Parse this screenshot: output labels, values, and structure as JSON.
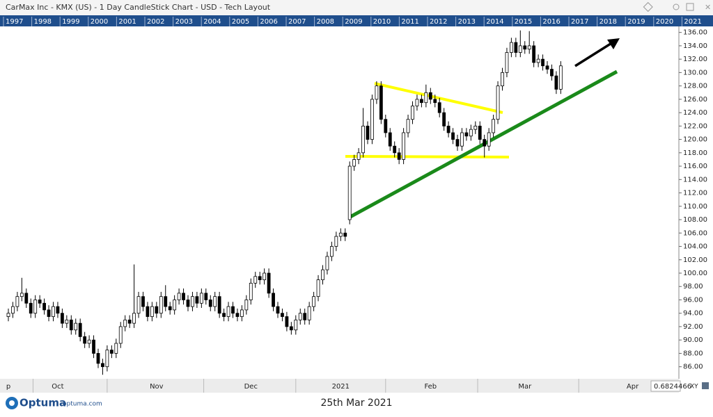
{
  "chart_data": {
    "type": "candlestick",
    "title": "CarMax Inc - KMX (US) - 1 Day CandleStick Chart - USD - Tech Layout",
    "categories": [
      "p",
      null,
      null,
      null,
      null,
      null,
      null,
      null,
      null,
      null,
      null,
      "Oct",
      null,
      null,
      null,
      null,
      null,
      null,
      null,
      null,
      null,
      null,
      null,
      null,
      null,
      null,
      null,
      null,
      null,
      null,
      null,
      null,
      null,
      "Nov",
      null,
      null,
      null,
      null,
      null,
      null,
      null,
      null,
      null,
      null,
      null,
      null,
      null,
      null,
      null,
      null,
      null,
      null,
      null,
      null,
      "Dec",
      null,
      null,
      null,
      null,
      null,
      null,
      null,
      null,
      null,
      null,
      null,
      null,
      null,
      null,
      null,
      null,
      null,
      null,
      null,
      "2021",
      null,
      null,
      null,
      null,
      null,
      null,
      null,
      null,
      null,
      null,
      null,
      null,
      null,
      null,
      null,
      null,
      null,
      null,
      null,
      "Feb",
      null,
      null,
      null,
      null,
      null,
      null,
      null,
      null,
      null,
      null,
      null,
      null,
      null,
      null,
      null,
      null,
      null,
      null,
      null,
      null,
      "Mar",
      null,
      null,
      null,
      null,
      null,
      null,
      null,
      null,
      null,
      null,
      null,
      null,
      null,
      null,
      null,
      null,
      null,
      null,
      null,
      null,
      null,
      null,
      null,
      "Apr",
      null,
      null,
      null,
      null,
      null,
      null,
      null,
      null,
      null,
      null
    ],
    "open": [
      93.5,
      94,
      95,
      96.5,
      97,
      95.5,
      94,
      96,
      95.5,
      94.5,
      93.5,
      95,
      94,
      92.5,
      93,
      91.5,
      92.5,
      90.5,
      89.5,
      90,
      88,
      86.5,
      86,
      88.5,
      88,
      89.5,
      92,
      93,
      92.5,
      94,
      96.5,
      95,
      93.5,
      95,
      94,
      96.5,
      95,
      94.5,
      96,
      97,
      96,
      95,
      96.5,
      95.5,
      97,
      96,
      95,
      96.5,
      94,
      93.5,
      95,
      94,
      93.5,
      94.5,
      96,
      98.5,
      99.5,
      99,
      100,
      97,
      95,
      94,
      93.5,
      92,
      91.5,
      93,
      94,
      93,
      95,
      96.5,
      99,
      100.5,
      102.5,
      104,
      105.5,
      106,
      108,
      116,
      117,
      118,
      122,
      120,
      126,
      128,
      123,
      121,
      119,
      118,
      117,
      121,
      123,
      125,
      126,
      125.5,
      127,
      126,
      125.5,
      124,
      122,
      121,
      120,
      119,
      121,
      120.5,
      121.5,
      122,
      120,
      119,
      121,
      123,
      128,
      130,
      133,
      134.5,
      133,
      134,
      133.5,
      134,
      131.5,
      132,
      131,
      130.5,
      129.5,
      127.5,
      null,
      null,
      null,
      null,
      null,
      null,
      null,
      null,
      null,
      null,
      null,
      null,
      null,
      null,
      null,
      null,
      null,
      null,
      null,
      null,
      null,
      null,
      null,
      null,
      null,
      null
    ],
    "high": [
      94.7,
      95.7,
      97.2,
      99.3,
      97.7,
      96.2,
      96.7,
      96.7,
      96.2,
      95.2,
      95.7,
      95.7,
      94.7,
      93.7,
      93.7,
      93.2,
      93.2,
      91.2,
      90.7,
      90.7,
      88.7,
      87.2,
      89.2,
      89.2,
      90.2,
      92.7,
      93.7,
      93.7,
      101.3,
      97.2,
      97.2,
      95.7,
      95.7,
      95.7,
      97.2,
      98.2,
      95.7,
      96.7,
      97.7,
      97.7,
      96.7,
      97.2,
      97.2,
      97.7,
      97.7,
      96.7,
      97.2,
      97.2,
      94.7,
      95.7,
      95.7,
      94.7,
      95.2,
      96.7,
      99.2,
      100.2,
      100.2,
      100.7,
      100.7,
      97.7,
      95.7,
      94.7,
      94.2,
      92.7,
      93.7,
      94.7,
      94.7,
      95.7,
      97.2,
      99.7,
      101.2,
      103.2,
      104.7,
      106.2,
      106.7,
      106.7,
      116.7,
      117.7,
      118.7,
      124.7,
      122.7,
      126.7,
      128.7,
      128.7,
      123.7,
      121.7,
      119.7,
      118.7,
      121.7,
      123.7,
      125.7,
      126.7,
      126.7,
      128.2,
      127.7,
      126.7,
      126.2,
      124.7,
      122.7,
      121.7,
      120.7,
      121.7,
      121.7,
      122.2,
      122.7,
      122.7,
      120.7,
      121.7,
      123.7,
      128.7,
      130.7,
      133.7,
      135.2,
      135.2,
      136.3,
      134.7,
      136.2,
      134.7,
      132.7,
      132.7,
      131.7,
      131.2,
      130.2,
      131.7,
      null,
      null,
      null,
      null,
      null,
      null,
      null,
      null,
      null,
      null,
      null,
      null,
      null,
      null,
      null,
      null,
      null,
      null,
      null,
      null,
      null,
      null,
      null,
      null,
      null,
      null
    ],
    "low": [
      92.8,
      93.3,
      94.3,
      95.8,
      94.8,
      93.3,
      93.3,
      94.8,
      93.8,
      92.8,
      92.8,
      93.3,
      91.8,
      91.8,
      90.8,
      90.8,
      89.8,
      88.8,
      88.8,
      87.3,
      85.8,
      84.8,
      85.3,
      87.3,
      87.3,
      88.8,
      91.3,
      91.8,
      91.8,
      93.3,
      94.3,
      92.8,
      92.8,
      93.3,
      93.3,
      94.3,
      93.8,
      93.8,
      95.3,
      95.3,
      94.3,
      94.3,
      94.8,
      94.8,
      95.3,
      94.3,
      94.3,
      93.3,
      92.8,
      92.8,
      93.3,
      92.8,
      92.8,
      93.8,
      95.3,
      97.8,
      98.3,
      98.3,
      96.3,
      94.3,
      93.3,
      92.8,
      91.3,
      90.8,
      90.8,
      92.3,
      92.3,
      92.3,
      94.3,
      95.8,
      98.3,
      99.8,
      101.8,
      103.3,
      104.8,
      104.8,
      107.3,
      115.3,
      116.3,
      117.3,
      119.3,
      119.3,
      125.3,
      122.3,
      120.3,
      118.3,
      117.3,
      116.3,
      116.3,
      120.3,
      122.3,
      124.3,
      124.8,
      124.8,
      125.3,
      124.8,
      123.3,
      121.3,
      120.3,
      119.3,
      118.3,
      118.3,
      119.8,
      119.8,
      120.8,
      119.3,
      117.3,
      118.3,
      120.3,
      122.3,
      127.3,
      129.3,
      132.3,
      132.3,
      132.3,
      132.8,
      132.8,
      130.8,
      130.8,
      130.3,
      129.8,
      128.8,
      126.8,
      126.8,
      null,
      null,
      null,
      null,
      null,
      null,
      null,
      null,
      null,
      null,
      null,
      null,
      null,
      null,
      null,
      null,
      null,
      null,
      null,
      null,
      null,
      null,
      null,
      null,
      null,
      null
    ],
    "close": [
      94,
      95,
      96.5,
      97,
      95.5,
      94,
      96,
      95.5,
      94.5,
      93.5,
      95,
      94,
      92.5,
      93,
      91.5,
      92.5,
      90.5,
      89.5,
      90,
      88,
      86.5,
      86,
      88.5,
      88,
      89.5,
      92,
      93,
      92.5,
      94,
      96.5,
      95,
      93.5,
      95,
      94,
      96.5,
      95,
      94.5,
      96,
      97,
      96,
      95,
      96.5,
      95.5,
      97,
      96,
      95,
      96.5,
      94,
      93.5,
      95,
      94,
      93.5,
      94.5,
      96,
      98.5,
      99.5,
      99,
      100,
      97,
      95,
      94,
      93.5,
      92,
      91.5,
      93,
      94,
      93,
      95,
      96.5,
      99,
      100.5,
      102.5,
      104,
      105.5,
      106,
      105.5,
      116,
      117,
      118,
      122,
      120,
      126,
      128,
      123,
      121,
      119,
      118,
      117,
      121,
      123,
      125,
      126,
      125.5,
      127,
      126,
      125.5,
      124,
      122,
      121,
      120,
      119,
      121,
      120.5,
      121.5,
      122,
      120,
      119,
      121,
      123,
      128,
      130,
      133,
      134.5,
      133,
      134,
      133.5,
      134,
      131.5,
      132,
      131,
      130.5,
      129.5,
      127.5,
      131,
      null,
      null,
      null,
      null,
      null,
      null,
      null,
      null,
      null,
      null,
      null,
      null,
      null,
      null,
      null,
      null,
      null,
      null,
      null,
      null,
      null,
      null,
      null,
      null,
      null,
      null
    ],
    "up_color": "#ffffff",
    "down_color": "#000000",
    "ylim": [
      84.2,
      136.9
    ],
    "yticks": [
      {
        "value": 86,
        "label": "86.00"
      },
      {
        "value": 88,
        "label": "88.00"
      },
      {
        "value": 90,
        "label": "90.00"
      },
      {
        "value": 92,
        "label": "92.00"
      },
      {
        "value": 94,
        "label": "94.00"
      },
      {
        "value": 96,
        "label": "96.00"
      },
      {
        "value": 98,
        "label": "98.00"
      },
      {
        "value": 100,
        "label": "100.00"
      },
      {
        "value": 102,
        "label": "102.00"
      },
      {
        "value": 104,
        "label": "104.00"
      },
      {
        "value": 106,
        "label": "106.00"
      },
      {
        "value": 108,
        "label": "108.00"
      },
      {
        "value": 110,
        "label": "110.00"
      },
      {
        "value": 112,
        "label": "112.00"
      },
      {
        "value": 114,
        "label": "114.00"
      },
      {
        "value": 116,
        "label": "116.00"
      },
      {
        "value": 118,
        "label": "118.00"
      },
      {
        "value": 120,
        "label": "120.00"
      },
      {
        "value": 122,
        "label": "122.00"
      },
      {
        "value": 124,
        "label": "124.00"
      },
      {
        "value": 126,
        "label": "126.00"
      },
      {
        "value": 128,
        "label": "128.00"
      },
      {
        "value": 130,
        "label": "130.00"
      },
      {
        "value": 132,
        "label": "132.00"
      },
      {
        "value": 134,
        "label": "134.00"
      },
      {
        "value": 136,
        "label": "136.00"
      }
    ],
    "grid": false
  },
  "year_strip": [
    "1997",
    "1998",
    "1999",
    "2000",
    "2001",
    "2002",
    "2003",
    "2004",
    "2005",
    "2006",
    "2007",
    "2008",
    "2009",
    "2010",
    "2011",
    "2012",
    "2013",
    "2014",
    "2015",
    "2016",
    "2017",
    "2018",
    "2019",
    "2020",
    "2021"
  ],
  "cursor_readout": "0.6824466",
  "xy_button": "XY",
  "footer": {
    "brand": "Optuma",
    "site": "optuma.com",
    "date": "25th Mar 2021"
  }
}
